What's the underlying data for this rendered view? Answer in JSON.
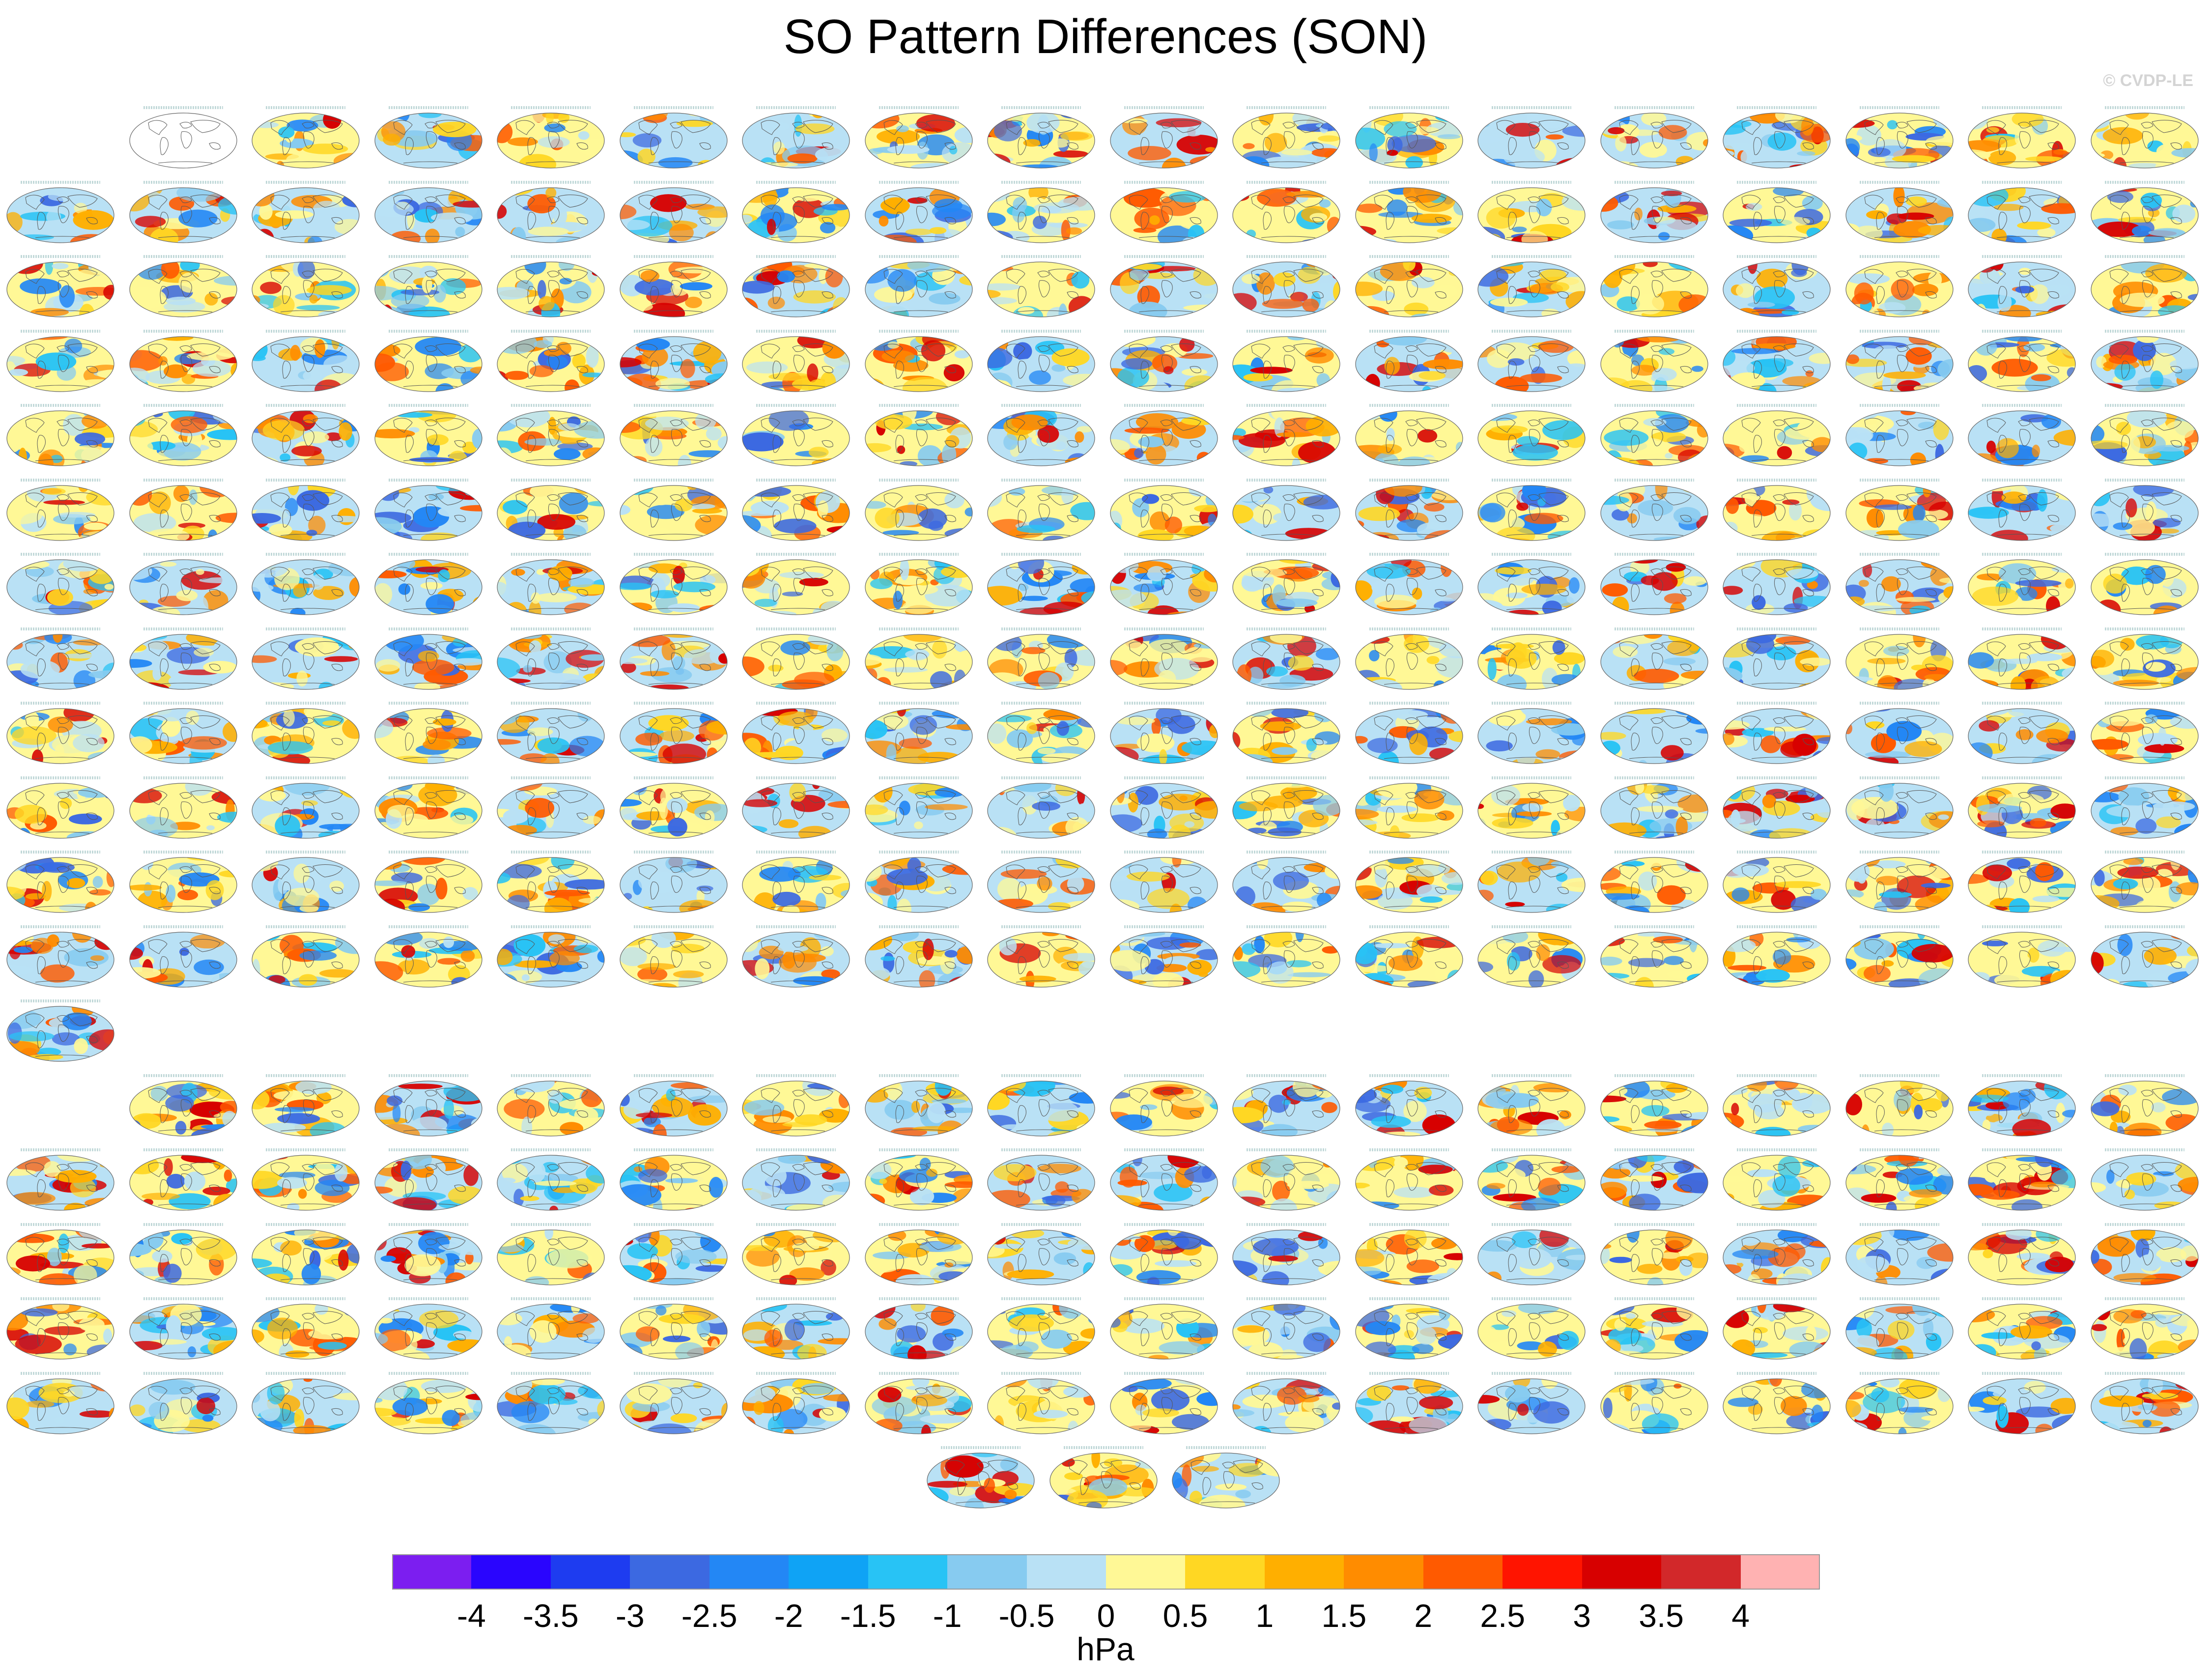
{
  "title": "SO Pattern Differences (SON)",
  "watermark": "© CVDP-LE",
  "colorbar": {
    "units": "hPa",
    "ticks": [
      "-4",
      "-3.5",
      "-3",
      "-2.5",
      "-2",
      "-1.5",
      "-1",
      "-0.5",
      "0",
      "0.5",
      "1",
      "1.5",
      "2",
      "2.5",
      "3",
      "3.5",
      "4"
    ],
    "colors": [
      "#7c1ef0",
      "#2a05fe",
      "#1e3cf0",
      "#3c69e1",
      "#2387f5",
      "#0fa3f5",
      "#28c3f5",
      "#87cbf0",
      "#b9e1f5",
      "#fff896",
      "#ffd723",
      "#ffaf00",
      "#ff8c00",
      "#ff5a00",
      "#ff1400",
      "#d70000",
      "#d2282a",
      "#ffb2b2"
    ]
  },
  "grid": {
    "rows": [
      18,
      18,
      18,
      18,
      18,
      18,
      18,
      18,
      18,
      18,
      18,
      18,
      1,
      17,
      18,
      18,
      18,
      18
    ],
    "first_row_has_reference": true,
    "bottom_row_maps": 3
  }
}
